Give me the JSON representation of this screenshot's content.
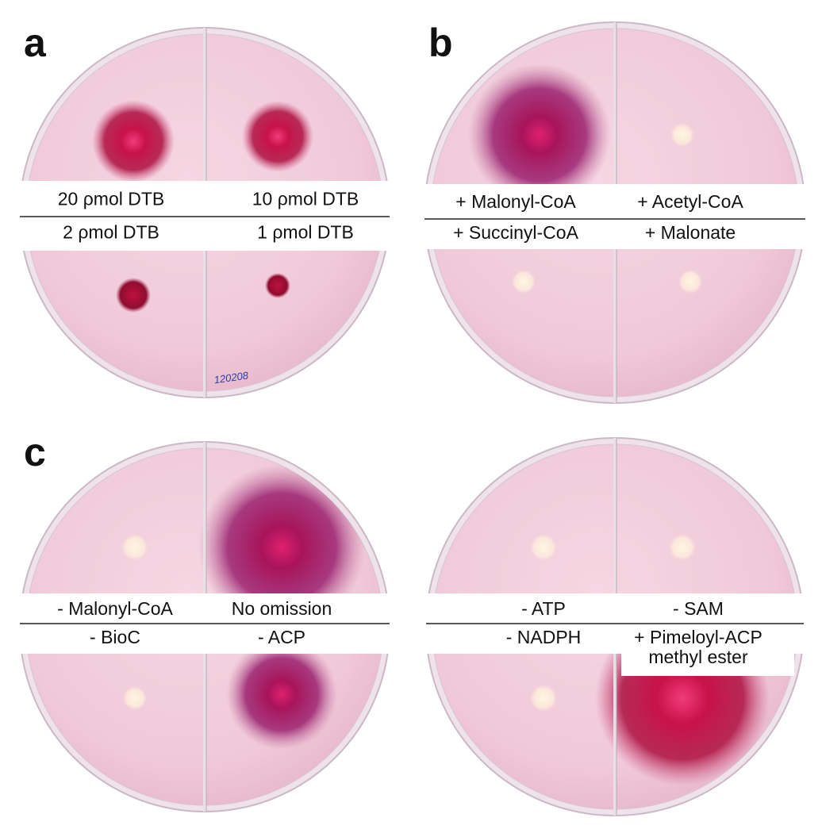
{
  "panels": {
    "a": {
      "letter": "a",
      "top_labels": [
        "20 ρmol DTB",
        "10 ρmol DTB"
      ],
      "bottom_labels": [
        "2 ρmol DTB",
        "1 ρmol DTB"
      ],
      "note": "120208"
    },
    "b": {
      "letter": "b",
      "top_labels": [
        "+ Malonyl-CoA",
        "+ Acetyl-CoA"
      ],
      "bottom_labels": [
        "+ Succinyl-CoA",
        "+ Malonate"
      ]
    },
    "c": {
      "letter": "c",
      "plates": [
        {
          "top_labels": [
            "- Malonyl-CoA",
            "No omission"
          ],
          "bottom_labels": [
            "- BioC",
            "- ACP"
          ]
        },
        {
          "top_labels": [
            "- ATP",
            "- SAM"
          ],
          "bottom_labels": [
            "- NADPH",
            [
              "+ Pimeloyl-ACP",
              "methyl ester"
            ]
          ]
        }
      ]
    }
  }
}
